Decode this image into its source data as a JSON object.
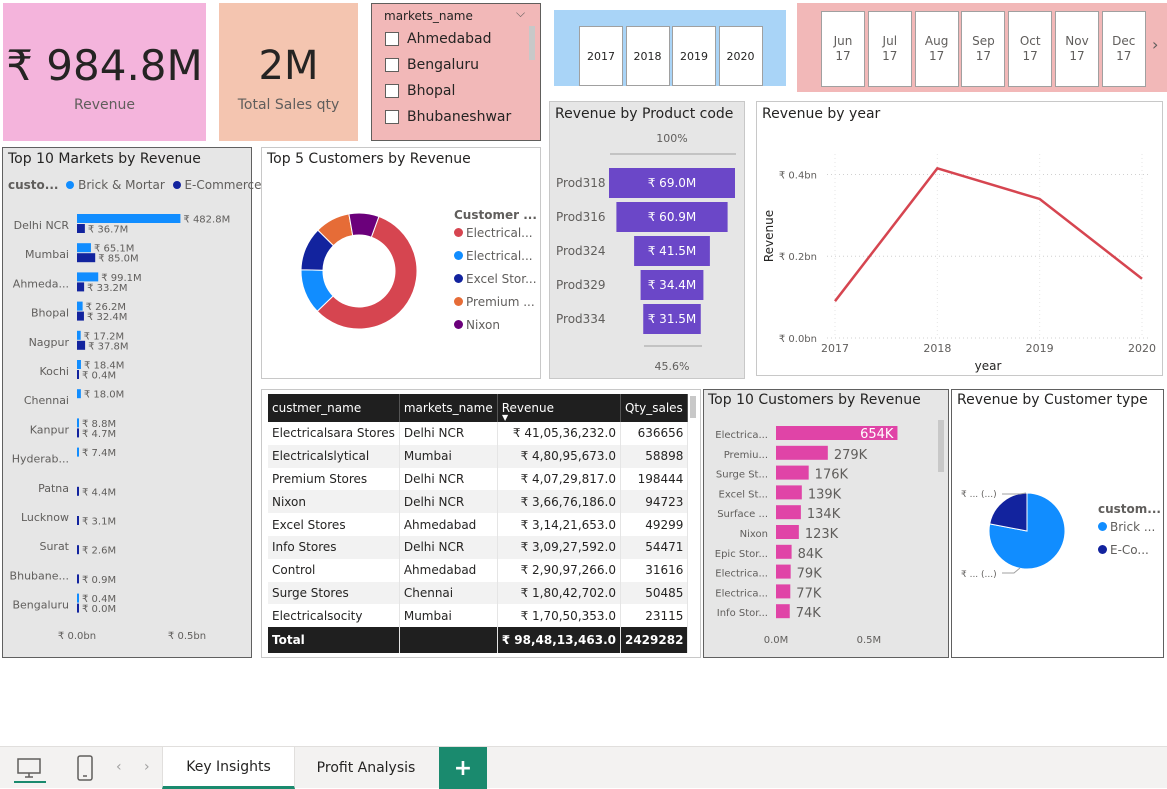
{
  "kpi_revenue": {
    "value": "₹ 984.8M",
    "label": "Revenue"
  },
  "kpi_qty": {
    "value": "2M",
    "label": "Total Sales qty"
  },
  "markets_slicer": {
    "title": "markets_name",
    "items": [
      "Ahmedabad",
      "Bengaluru",
      "Bhopal",
      "Bhubaneshwar"
    ]
  },
  "year_slicer": {
    "items": [
      "2017",
      "2018",
      "2019",
      "2020"
    ]
  },
  "month_slicer": {
    "items": [
      [
        "Jun",
        "17"
      ],
      [
        "Jul",
        "17"
      ],
      [
        "Aug",
        "17"
      ],
      [
        "Sep",
        "17"
      ],
      [
        "Oct",
        "17"
      ],
      [
        "Nov",
        "17"
      ],
      [
        "Dec",
        "17"
      ]
    ]
  },
  "colors": {
    "revenue_card": "#f4b4dc",
    "qty_card": "#f4c5b0",
    "slicer_bg": "#f2b8b8",
    "year_bg": "#a9d4f7",
    "month_bg": "#f2b8b8",
    "brick": "#118dff",
    "ecom": "#12239e",
    "funnel": "#6b47c8",
    "line": "#d64550",
    "pink_bar": "#e044a7"
  },
  "chart_data": [
    {
      "type": "bar",
      "title": "Top 10 Markets by Revenue",
      "legend_title": "custo...",
      "legend": [
        "Brick & Mortar",
        "E-Commerce"
      ],
      "categories": [
        "Delhi NCR",
        "Mumbai",
        "Ahmeda...",
        "Bhopal",
        "Nagpur",
        "Kochi",
        "Chennai",
        "Kanpur",
        "Hyderab...",
        "Patna",
        "Lucknow",
        "Surat",
        "Bhubane...",
        "Bengaluru"
      ],
      "series": [
        {
          "name": "Brick & Mortar",
          "values": [
            482.8,
            65.1,
            99.1,
            26.2,
            17.2,
            18.4,
            18.0,
            8.8,
            7.4,
            null,
            null,
            null,
            null,
            0.4
          ],
          "labels": [
            "₹ 482.8M",
            "₹ 65.1M",
            "₹ 99.1M",
            "₹ 26.2M",
            "₹ 17.2M",
            "₹ 18.4M",
            "₹ 18.0M",
            "₹ 8.8M",
            "₹ 7.4M",
            "",
            "",
            "",
            "",
            "₹ 0.4M"
          ]
        },
        {
          "name": "E-Commerce",
          "values": [
            36.7,
            85.0,
            33.2,
            32.4,
            37.8,
            0.4,
            null,
            4.7,
            null,
            4.4,
            3.1,
            2.6,
            0.9,
            0.0
          ],
          "labels": [
            "₹ 36.7M",
            "₹ 85.0M",
            "₹ 33.2M",
            "₹ 32.4M",
            "₹ 37.8M",
            "₹ 0.4M",
            "",
            "₹ 4.7M",
            "",
            "₹ 4.4M",
            "₹ 3.1M",
            "₹ 2.6M",
            "₹ 0.9M",
            "₹ 0.0M"
          ]
        }
      ],
      "x_ticks": [
        "₹ 0.0bn",
        "₹ 0.5bn"
      ],
      "xlim": [
        0,
        500
      ]
    },
    {
      "type": "pie",
      "title": "Top 5 Customers by Revenue",
      "legend_title": "Customer ...",
      "labels": [
        "Electrical...",
        "Electrical...",
        "Excel Stor...",
        "Premium ...",
        "Nixon"
      ],
      "values": [
        41.05,
        9.0,
        8.7,
        7.0,
        6.0
      ],
      "colors": [
        "#d64550",
        "#118dff",
        "#12239e",
        "#e66c37",
        "#6b007b"
      ]
    },
    {
      "type": "bar",
      "title": "Revenue by Product code",
      "categories": [
        "Prod318",
        "Prod316",
        "Prod324",
        "Prod329",
        "Prod334"
      ],
      "values": [
        69.0,
        60.9,
        41.5,
        34.4,
        31.5
      ],
      "labels": [
        "₹ 69.0M",
        "₹ 60.9M",
        "₹ 41.5M",
        "₹ 34.4M",
        "₹ 31.5M"
      ],
      "top_pct": "100%",
      "bottom_pct": "45.6%"
    },
    {
      "type": "line",
      "title": "Revenue by year",
      "xlabel": "year",
      "ylabel": "Revenue",
      "x": [
        2017,
        2018,
        2019,
        2020
      ],
      "y": [
        0.09,
        0.415,
        0.34,
        0.145
      ],
      "y_ticks": [
        "₹ 0.0bn",
        "₹ 0.2bn",
        "₹ 0.4bn"
      ],
      "ylim": [
        0,
        0.45
      ]
    },
    {
      "type": "bar",
      "title": "Top 10 Customers by Revenue",
      "categories": [
        "Electrica...",
        "Premiu...",
        "Surge St...",
        "Excel St...",
        "Surface ...",
        "Nixon",
        "Epic Stor...",
        "Electrica...",
        "Electrica...",
        "Info Stor..."
      ],
      "values": [
        654,
        279,
        176,
        139,
        134,
        123,
        84,
        79,
        77,
        74
      ],
      "labels": [
        "654K",
        "279K",
        "176K",
        "139K",
        "134K",
        "123K",
        "84K",
        "79K",
        "77K",
        "74K"
      ],
      "x_ticks": [
        "0.0M",
        "0.5M"
      ],
      "xlim": [
        0,
        700
      ]
    },
    {
      "type": "pie",
      "title": "Revenue by Customer type",
      "legend_title": "custom...",
      "labels": [
        "Brick ...",
        "E-Co..."
      ],
      "values": [
        78,
        22
      ],
      "colors": [
        "#118dff",
        "#12239e"
      ],
      "slice_labels": [
        "₹ ... (...)",
        "₹ ... (...)"
      ]
    }
  ],
  "table": {
    "columns": [
      "custmer_name",
      "markets_name",
      "Revenue",
      "Qty_sales"
    ],
    "rows": [
      [
        "Electricalsara Stores",
        "Delhi NCR",
        "₹ 41,05,36,232.0",
        "636656"
      ],
      [
        "Electricalslytical",
        "Mumbai",
        "₹ 4,80,95,673.0",
        "58898"
      ],
      [
        "Premium Stores",
        "Delhi NCR",
        "₹ 4,07,29,817.0",
        "198444"
      ],
      [
        "Nixon",
        "Delhi NCR",
        "₹ 3,66,76,186.0",
        "94723"
      ],
      [
        "Excel Stores",
        "Ahmedabad",
        "₹ 3,14,21,653.0",
        "49299"
      ],
      [
        "Info Stores",
        "Delhi NCR",
        "₹ 3,09,27,592.0",
        "54471"
      ],
      [
        "Control",
        "Ahmedabad",
        "₹ 2,90,97,266.0",
        "31616"
      ],
      [
        "Surge Stores",
        "Chennai",
        "₹ 1,80,42,702.0",
        "50485"
      ],
      [
        "Electricalsocity",
        "Mumbai",
        "₹ 1,70,50,353.0",
        "23115"
      ]
    ],
    "total": [
      "Total",
      "",
      "₹ 98,48,13,463.0",
      "2429282"
    ]
  },
  "tabs": {
    "key_insights": "Key Insights",
    "profit_analysis": "Profit Analysis",
    "add": "+"
  }
}
